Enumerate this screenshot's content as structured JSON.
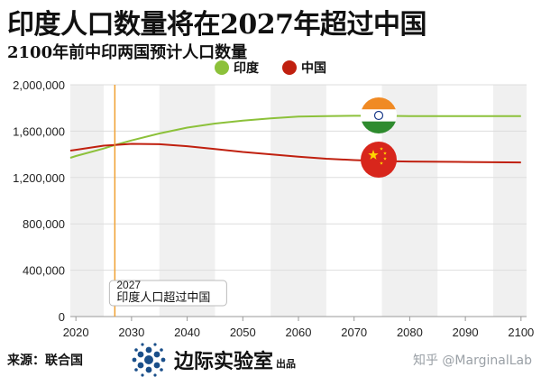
{
  "title": "印度人口数量将在2027年超过中国",
  "subtitle": "2100年前中印两国预计人口数量",
  "source": "来源：联合国",
  "brand": {
    "name": "边际实验室",
    "suffix": "出品"
  },
  "watermark": "知乎 @MarginalLab",
  "colors": {
    "india": "#8cc13a",
    "china": "#c0200f",
    "marker": "#f0a030",
    "band": "#f0f0f0"
  },
  "chart_data": {
    "type": "line",
    "title": "印度人口数量将在2027年超过中国",
    "subtitle": "2100年前中印两国预计人口数量",
    "xlim": [
      2019,
      2101
    ],
    "ylim": [
      0,
      2000000
    ],
    "x_ticks": [
      "2020",
      "2030",
      "2040",
      "2050",
      "2060",
      "2070",
      "2080",
      "2090",
      "2100"
    ],
    "y_ticks": [
      "0",
      "400,000",
      "800,000",
      "1,200,000",
      "1,600,000",
      "2,000,000"
    ],
    "legend_position": "top-center",
    "grid": true,
    "series": [
      {
        "name": "印度",
        "flag": "india-flag",
        "x": [
          2019,
          2020,
          2025,
          2027,
          2030,
          2035,
          2040,
          2045,
          2050,
          2055,
          2060,
          2065,
          2070,
          2075,
          2080,
          2090,
          2100
        ],
        "values": [
          1370000,
          1385000,
          1450000,
          1480000,
          1520000,
          1580000,
          1630000,
          1665000,
          1690000,
          1710000,
          1725000,
          1730000,
          1732000,
          1732000,
          1730000,
          1730000,
          1730000
        ]
      },
      {
        "name": "中国",
        "flag": "china-flag",
        "x": [
          2019,
          2020,
          2025,
          2027,
          2030,
          2035,
          2040,
          2045,
          2050,
          2055,
          2060,
          2065,
          2070,
          2075,
          2080,
          2090,
          2100
        ],
        "values": [
          1432000,
          1439000,
          1475000,
          1480000,
          1490000,
          1487000,
          1470000,
          1446000,
          1420000,
          1400000,
          1380000,
          1362000,
          1350000,
          1342000,
          1338000,
          1334000,
          1330000
        ]
      }
    ],
    "annotation": {
      "x": 2027,
      "year_label": "2027",
      "text": "印度人口超过中国"
    }
  }
}
